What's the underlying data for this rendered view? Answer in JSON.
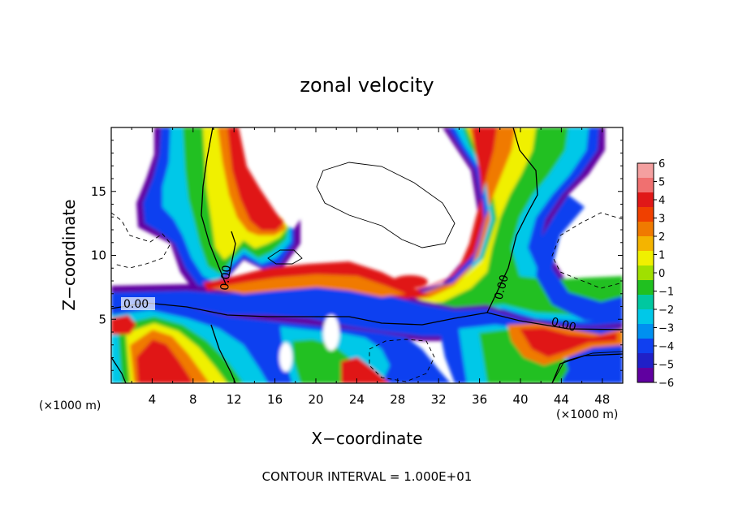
{
  "chart_data": {
    "type": "heatmap",
    "title": "zonal velocity",
    "xlabel": "X−coordinate",
    "ylabel": "Z−coordinate",
    "x_unit_label": "(×1000 m)",
    "z_unit_label": "(×1000 m)",
    "xlim": [
      0,
      50
    ],
    "ylim": [
      0,
      20
    ],
    "x_ticks": [
      "4",
      "8",
      "12",
      "16",
      "20",
      "24",
      "28",
      "32",
      "36",
      "40",
      "44",
      "48"
    ],
    "y_ticks": [
      "5",
      "10",
      "15"
    ],
    "colorbar_ticks": [
      "6",
      "5",
      "4",
      "3",
      "2",
      "1",
      "0",
      "−1",
      "−2",
      "−3",
      "−4",
      "−5",
      "−6"
    ],
    "colorbar_range": [
      -6,
      6
    ],
    "colorbar_colors": [
      "#f4a0a0",
      "#f07070",
      "#e01818",
      "#f04000",
      "#f07a00",
      "#f4b400",
      "#f0f000",
      "#a0e000",
      "#20c020",
      "#00c8a0",
      "#00c8e8",
      "#0090f0",
      "#1040f0",
      "#2020c8",
      "#6000a0"
    ],
    "contour_labels": [
      "0.00",
      "0.00",
      "0.00",
      "0.00"
    ],
    "footer": "CONTOUR INTERVAL = 1.000E+01"
  }
}
